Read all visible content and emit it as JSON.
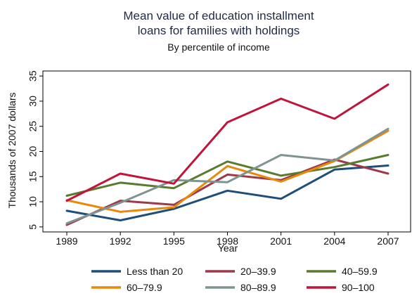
{
  "chart_data": {
    "type": "line",
    "title_lines": [
      "Mean value of education installment",
      "loans for families with holdings"
    ],
    "subtitle": "By percentile of income",
    "xlabel": "Year",
    "ylabel": "Thousands of 2007 dollars",
    "x": [
      "1989",
      "1992",
      "1995",
      "1998",
      "2001",
      "2004",
      "2007"
    ],
    "ylim": [
      4,
      36
    ],
    "yticks": [
      "5",
      "10",
      "15",
      "20",
      "25",
      "30",
      "35"
    ],
    "grid": false,
    "legend_position": "bottom",
    "series": [
      {
        "name": "Less than 20",
        "color": "#1f4e79",
        "values": [
          8.2,
          6.3,
          8.6,
          12.2,
          10.6,
          16.4,
          17.2
        ]
      },
      {
        "name": "20–39.9",
        "color": "#9b3a4a",
        "values": [
          5.4,
          10.2,
          9.4,
          15.4,
          14.3,
          18.4,
          15.6
        ]
      },
      {
        "name": "40–59.9",
        "color": "#5a7a2e",
        "values": [
          11.2,
          13.8,
          12.7,
          18.0,
          15.2,
          16.9,
          19.3
        ]
      },
      {
        "name": "60–79.9",
        "color": "#e8890c",
        "values": [
          10.3,
          8.0,
          8.9,
          17.1,
          14.0,
          18.1,
          24.1
        ]
      },
      {
        "name": "80–89.9",
        "color": "#7f9492",
        "values": [
          5.7,
          9.8,
          14.3,
          13.9,
          19.3,
          18.2,
          24.5
        ]
      },
      {
        "name": "90–100",
        "color": "#c0143c",
        "values": [
          10.2,
          15.6,
          13.6,
          25.8,
          30.5,
          26.5,
          33.3
        ]
      }
    ]
  }
}
